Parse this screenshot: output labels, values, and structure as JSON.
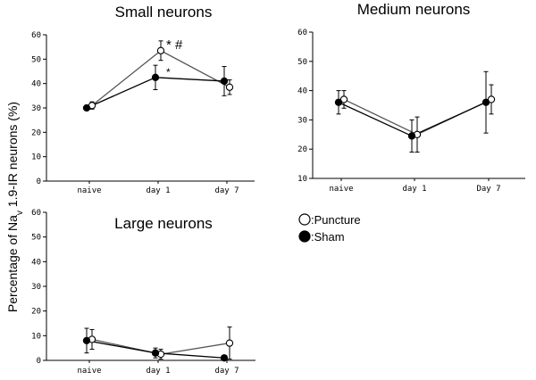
{
  "figure": {
    "ylabel_prefix": "Percentage of Na",
    "ylabel_sub": "v",
    "ylabel_suffix": " 1.9-IR neurons (%)"
  },
  "legend": {
    "puncture": ":Puncture",
    "sham": ":Sham"
  },
  "chart_data": [
    {
      "type": "line",
      "title": "Small neurons",
      "categories": [
        "naive",
        "day 1",
        "day 7"
      ],
      "ylim": [
        0,
        60
      ],
      "yticks": [
        0,
        10,
        20,
        30,
        40,
        50,
        60
      ],
      "series": [
        {
          "name": "Puncture",
          "marker": "open",
          "values": [
            31,
            53.5,
            38.5
          ],
          "err": [
            1.5,
            4,
            3
          ]
        },
        {
          "name": "Sham",
          "marker": "filled",
          "values": [
            30,
            42.5,
            41
          ],
          "err": [
            1,
            5,
            6
          ]
        }
      ],
      "annotations": [
        {
          "category": "day 1",
          "series": "Puncture",
          "text": "* #"
        },
        {
          "category": "day 1",
          "series": "Sham",
          "text": "*"
        }
      ]
    },
    {
      "type": "line",
      "title": "Medium neurons",
      "categories": [
        "naive",
        "day 1",
        "Day 7"
      ],
      "ylim": [
        10,
        60
      ],
      "yticks": [
        10,
        20,
        30,
        40,
        50,
        60
      ],
      "series": [
        {
          "name": "Puncture",
          "marker": "open",
          "values": [
            37,
            25,
            37
          ],
          "err": [
            3,
            6,
            5
          ]
        },
        {
          "name": "Sham",
          "marker": "filled",
          "values": [
            36,
            24.5,
            36
          ],
          "err": [
            4,
            5.5,
            10.5
          ]
        }
      ],
      "annotations": []
    },
    {
      "type": "line",
      "title": "Large neurons",
      "categories": [
        "naive",
        "day 1",
        "day 7"
      ],
      "ylim": [
        0,
        60
      ],
      "yticks": [
        0,
        10,
        20,
        30,
        40,
        50,
        60
      ],
      "series": [
        {
          "name": "Puncture",
          "marker": "open",
          "values": [
            8.5,
            2.5,
            7
          ],
          "err": [
            4,
            2,
            6.5
          ]
        },
        {
          "name": "Sham",
          "marker": "filled",
          "values": [
            8,
            3,
            1
          ],
          "err": [
            5,
            2,
            0.5
          ]
        }
      ],
      "annotations": []
    }
  ]
}
